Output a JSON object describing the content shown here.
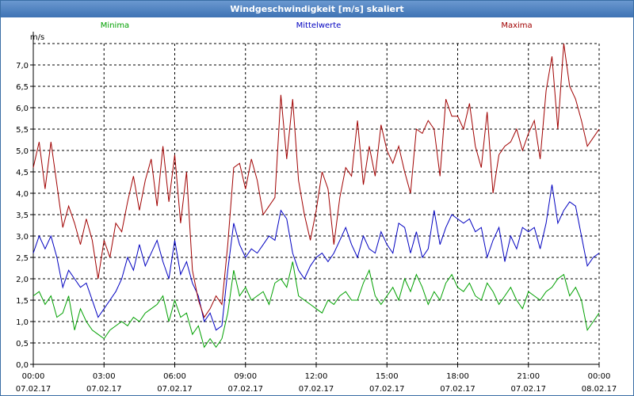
{
  "window": {
    "title": "Windgeschwindigkeit [m/s] skaliert"
  },
  "colors": {
    "min": "#00a000",
    "mean": "#0000c0",
    "max": "#a00000",
    "grid": "#000000"
  },
  "chart_data": {
    "type": "line",
    "title": "Windgeschwindigkeit [m/s] skaliert",
    "ylabel": "m/s",
    "xlabel": "",
    "ylim": [
      0,
      7.5
    ],
    "xlim": [
      0,
      24
    ],
    "yticks": [
      "0,0",
      "0,5",
      "1,0",
      "1,5",
      "2,0",
      "2,5",
      "3,0",
      "3,5",
      "4,0",
      "4,5",
      "5,0",
      "5,5",
      "6,0",
      "6,5",
      "7,0"
    ],
    "xticks": [
      {
        "time": "00:00",
        "date": "07.02.17"
      },
      {
        "time": "03:00",
        "date": "07.02.17"
      },
      {
        "time": "06:00",
        "date": "07.02.17"
      },
      {
        "time": "09:00",
        "date": "07.02.17"
      },
      {
        "time": "12:00",
        "date": "07.02.17"
      },
      {
        "time": "15:00",
        "date": "07.02.17"
      },
      {
        "time": "18:00",
        "date": "07.02.17"
      },
      {
        "time": "21:00",
        "date": "07.02.17"
      },
      {
        "time": "00:00",
        "date": "08.02.17"
      }
    ],
    "series": [
      {
        "name": "Minima",
        "x": [
          0,
          0.25,
          0.5,
          0.75,
          1,
          1.25,
          1.5,
          1.75,
          2,
          2.25,
          2.5,
          2.75,
          3,
          3.25,
          3.5,
          3.75,
          4,
          4.25,
          4.5,
          4.75,
          5,
          5.25,
          5.5,
          5.75,
          6,
          6.25,
          6.5,
          6.75,
          7,
          7.25,
          7.5,
          7.75,
          8,
          8.25,
          8.5,
          8.75,
          9,
          9.25,
          9.5,
          9.75,
          10,
          10.25,
          10.5,
          10.75,
          11,
          11.25,
          11.5,
          11.75,
          12,
          12.25,
          12.5,
          12.75,
          13,
          13.25,
          13.5,
          13.75,
          14,
          14.25,
          14.5,
          14.75,
          15,
          15.25,
          15.5,
          15.75,
          16,
          16.25,
          16.5,
          16.75,
          17,
          17.25,
          17.5,
          17.75,
          18,
          18.25,
          18.5,
          18.75,
          19,
          19.25,
          19.5,
          19.75,
          20,
          20.25,
          20.5,
          20.75,
          21,
          21.25,
          21.5,
          21.75,
          22,
          22.25,
          22.5,
          22.75,
          23,
          23.25,
          23.5,
          23.75,
          24
        ],
        "values": [
          1.6,
          1.7,
          1.4,
          1.6,
          1.1,
          1.2,
          1.6,
          0.8,
          1.3,
          1.0,
          0.8,
          0.7,
          0.6,
          0.8,
          0.9,
          1.0,
          0.9,
          1.1,
          1.0,
          1.2,
          1.3,
          1.4,
          1.6,
          1.0,
          1.5,
          1.1,
          1.2,
          0.7,
          0.9,
          0.4,
          0.6,
          0.4,
          0.6,
          1.2,
          2.2,
          1.6,
          1.8,
          1.5,
          1.6,
          1.7,
          1.4,
          1.9,
          2.0,
          1.8,
          2.4,
          1.6,
          1.5,
          1.4,
          1.3,
          1.2,
          1.5,
          1.4,
          1.6,
          1.7,
          1.5,
          1.5,
          1.9,
          2.2,
          1.6,
          1.4,
          1.6,
          1.8,
          1.5,
          2.0,
          1.7,
          2.1,
          1.8,
          1.4,
          1.7,
          1.5,
          1.9,
          2.1,
          1.8,
          1.7,
          1.9,
          1.6,
          1.5,
          1.9,
          1.7,
          1.4,
          1.6,
          1.8,
          1.5,
          1.3,
          1.7,
          1.6,
          1.5,
          1.7,
          1.8,
          2.0,
          2.1,
          1.6,
          1.8,
          1.5,
          0.8,
          1.0,
          1.2
        ]
      },
      {
        "name": "Mittelwerte",
        "x": [
          0,
          0.25,
          0.5,
          0.75,
          1,
          1.25,
          1.5,
          1.75,
          2,
          2.25,
          2.5,
          2.75,
          3,
          3.25,
          3.5,
          3.75,
          4,
          4.25,
          4.5,
          4.75,
          5,
          5.25,
          5.5,
          5.75,
          6,
          6.25,
          6.5,
          6.75,
          7,
          7.25,
          7.5,
          7.75,
          8,
          8.25,
          8.5,
          8.75,
          9,
          9.25,
          9.5,
          9.75,
          10,
          10.25,
          10.5,
          10.75,
          11,
          11.25,
          11.5,
          11.75,
          12,
          12.25,
          12.5,
          12.75,
          13,
          13.25,
          13.5,
          13.75,
          14,
          14.25,
          14.5,
          14.75,
          15,
          15.25,
          15.5,
          15.75,
          16,
          16.25,
          16.5,
          16.75,
          17,
          17.25,
          17.5,
          17.75,
          18,
          18.25,
          18.5,
          18.75,
          19,
          19.25,
          19.5,
          19.75,
          20,
          20.25,
          20.5,
          20.75,
          21,
          21.25,
          21.5,
          21.75,
          22,
          22.25,
          22.5,
          22.75,
          23,
          23.25,
          23.5,
          23.75,
          24
        ],
        "values": [
          2.6,
          3.0,
          2.7,
          3.0,
          2.5,
          1.8,
          2.2,
          2.0,
          1.8,
          1.9,
          1.5,
          1.1,
          1.3,
          1.5,
          1.7,
          2.0,
          2.5,
          2.2,
          2.8,
          2.3,
          2.6,
          2.9,
          2.4,
          2.0,
          2.9,
          2.1,
          2.4,
          1.9,
          1.6,
          1.0,
          1.2,
          0.8,
          0.9,
          2.2,
          3.3,
          2.8,
          2.5,
          2.7,
          2.6,
          2.8,
          3.0,
          2.9,
          3.6,
          3.4,
          2.6,
          2.2,
          2.0,
          2.3,
          2.5,
          2.6,
          2.4,
          2.6,
          2.9,
          3.2,
          2.8,
          2.5,
          3.0,
          2.7,
          2.6,
          3.1,
          2.8,
          2.6,
          3.3,
          3.2,
          2.6,
          3.1,
          2.5,
          2.7,
          3.6,
          2.8,
          3.2,
          3.5,
          3.4,
          3.3,
          3.4,
          3.1,
          3.2,
          2.5,
          2.9,
          3.2,
          2.4,
          3.0,
          2.7,
          3.2,
          3.1,
          3.2,
          2.7,
          3.3,
          4.2,
          3.3,
          3.6,
          3.8,
          3.7,
          3.0,
          2.3,
          2.5,
          2.6
        ]
      },
      {
        "name": "Maxima",
        "x": [
          0,
          0.25,
          0.5,
          0.75,
          1,
          1.25,
          1.5,
          1.75,
          2,
          2.25,
          2.5,
          2.75,
          3,
          3.25,
          3.5,
          3.75,
          4,
          4.25,
          4.5,
          4.75,
          5,
          5.25,
          5.5,
          5.75,
          6,
          6.25,
          6.5,
          6.75,
          7,
          7.25,
          7.5,
          7.75,
          8,
          8.25,
          8.5,
          8.75,
          9,
          9.25,
          9.5,
          9.75,
          10,
          10.25,
          10.5,
          10.75,
          11,
          11.25,
          11.5,
          11.75,
          12,
          12.25,
          12.5,
          12.75,
          13,
          13.25,
          13.5,
          13.75,
          14,
          14.25,
          14.5,
          14.75,
          15,
          15.25,
          15.5,
          15.75,
          16,
          16.25,
          16.5,
          16.75,
          17,
          17.25,
          17.5,
          17.75,
          18,
          18.25,
          18.5,
          18.75,
          19,
          19.25,
          19.5,
          19.75,
          20,
          20.25,
          20.5,
          20.75,
          21,
          21.25,
          21.5,
          21.75,
          22,
          22.25,
          22.5,
          22.75,
          23,
          23.25,
          23.5,
          23.75,
          24
        ],
        "values": [
          4.6,
          5.2,
          4.1,
          5.2,
          4.2,
          3.2,
          3.7,
          3.3,
          2.8,
          3.4,
          2.9,
          2.0,
          2.9,
          2.5,
          3.3,
          3.1,
          3.8,
          4.4,
          3.6,
          4.3,
          4.8,
          3.7,
          5.1,
          3.8,
          4.9,
          3.3,
          4.5,
          2.2,
          1.5,
          1.1,
          1.3,
          1.6,
          1.4,
          2.8,
          4.6,
          4.7,
          4.1,
          4.8,
          4.3,
          3.5,
          3.7,
          3.9,
          6.3,
          4.8,
          6.2,
          4.3,
          3.5,
          2.9,
          3.6,
          4.5,
          4.1,
          2.8,
          3.9,
          4.6,
          4.4,
          5.7,
          4.2,
          5.1,
          4.4,
          5.6,
          5.0,
          4.7,
          5.1,
          4.5,
          4.0,
          5.5,
          5.4,
          5.7,
          5.5,
          4.4,
          6.2,
          5.8,
          5.8,
          5.5,
          6.1,
          5.1,
          4.6,
          5.9,
          4.0,
          4.9,
          5.1,
          5.2,
          5.5,
          5.0,
          5.4,
          5.7,
          4.8,
          6.4,
          7.2,
          5.5,
          7.5,
          6.5,
          6.2,
          5.7,
          5.1,
          5.3,
          5.5
        ]
      }
    ]
  }
}
